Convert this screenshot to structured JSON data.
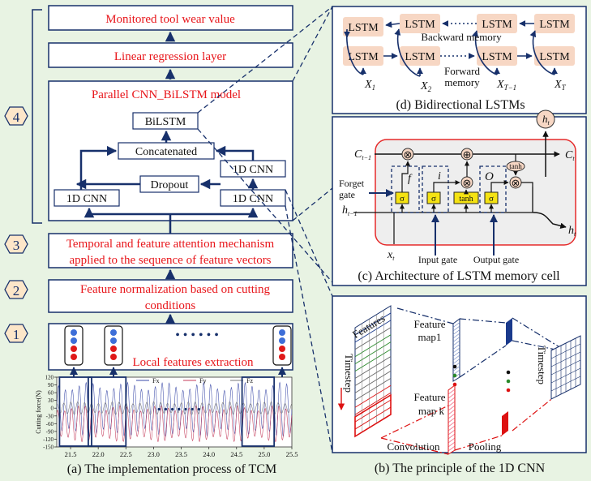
{
  "left": {
    "out_box": "Monitored tool wear value",
    "lin_box": "Linear regression layer",
    "model_title": "Parallel CNN_BiLSTM model",
    "bilstm": "BiLSTM",
    "concat": "Concatenated",
    "cnn": "1D CNN",
    "dropout": "Dropout",
    "attn_line1": "Temporal and feature attention mechanism",
    "attn_line2": "applied to the sequence of feature vectors",
    "norm_line1": "Feature normalization  based on cutting",
    "norm_line2": "conditions",
    "local": "Local features extraction",
    "dots": "• • • • • •",
    "steps": [
      "4",
      "3",
      "2",
      "1"
    ],
    "caption": "(a) The implementation process of TCM"
  },
  "chart_data": {
    "type": "line",
    "ylabel": "Cutting force(N)",
    "xlabel": "",
    "xlim": [
      21.25,
      25.5
    ],
    "ylim": [
      -150,
      120
    ],
    "x_ticks": [
      "21.5",
      "22.0",
      "22.5",
      "23.0",
      "23.5",
      "24.0",
      "24.5",
      "25.0",
      "25.5"
    ],
    "y_ticks": [
      "120",
      "90",
      "60",
      "30",
      "0",
      "-30",
      "-60",
      "-90",
      "-120",
      "-150"
    ],
    "series": [
      {
        "name": "Fx",
        "color": "#3a49a8",
        "pattern": "periodic",
        "min": -110,
        "max": 100
      },
      {
        "name": "Fy",
        "color": "#c43b5a",
        "pattern": "periodic",
        "min": -130,
        "max": 10
      },
      {
        "name": "Fz",
        "color": "#777777",
        "pattern": "periodic",
        "min": -25,
        "max": 25
      }
    ]
  },
  "bilstm_panel": {
    "cell": "LSTM",
    "backward": "Backward memory",
    "forward1": "Forward",
    "forward2": "memory",
    "inputs": [
      {
        "base": "X",
        "sub": "1"
      },
      {
        "base": "X",
        "sub": "2"
      },
      {
        "base": "X",
        "sub": "T−1"
      },
      {
        "base": "X",
        "sub": "T"
      }
    ],
    "caption": "(d) Bidirectional LSTMs"
  },
  "cell_panel": {
    "ht": {
      "base": "h",
      "sub": "t"
    },
    "c_prev": {
      "base": "C",
      "sub": "t−1"
    },
    "c_next": {
      "base": "C",
      "sub": "t"
    },
    "h_prev": {
      "base": "h",
      "sub": "t−1"
    },
    "h_out": {
      "base": "h",
      "sub": "t"
    },
    "x_in": {
      "base": "x",
      "sub": "t"
    },
    "forget1": "Forget",
    "forget2": "gate",
    "input_gate": "Input gate",
    "output_gate": "Output gate",
    "f": "f",
    "i": "i",
    "o": "O",
    "sigma": "σ",
    "tanh": "tanh",
    "times": "⊗",
    "plus": "⊕",
    "caption": "(c) Architecture of LSTM memory cell"
  },
  "cnn_panel": {
    "features": "Features",
    "timestep": "Timestep",
    "map1_a": "Feature",
    "map1_b": "map1",
    "mapk_a": "Feature",
    "mapk_b": "map k",
    "convolution": "Convolution",
    "pooling": "Pooling",
    "caption": "(b) The principle of the 1D CNN"
  }
}
